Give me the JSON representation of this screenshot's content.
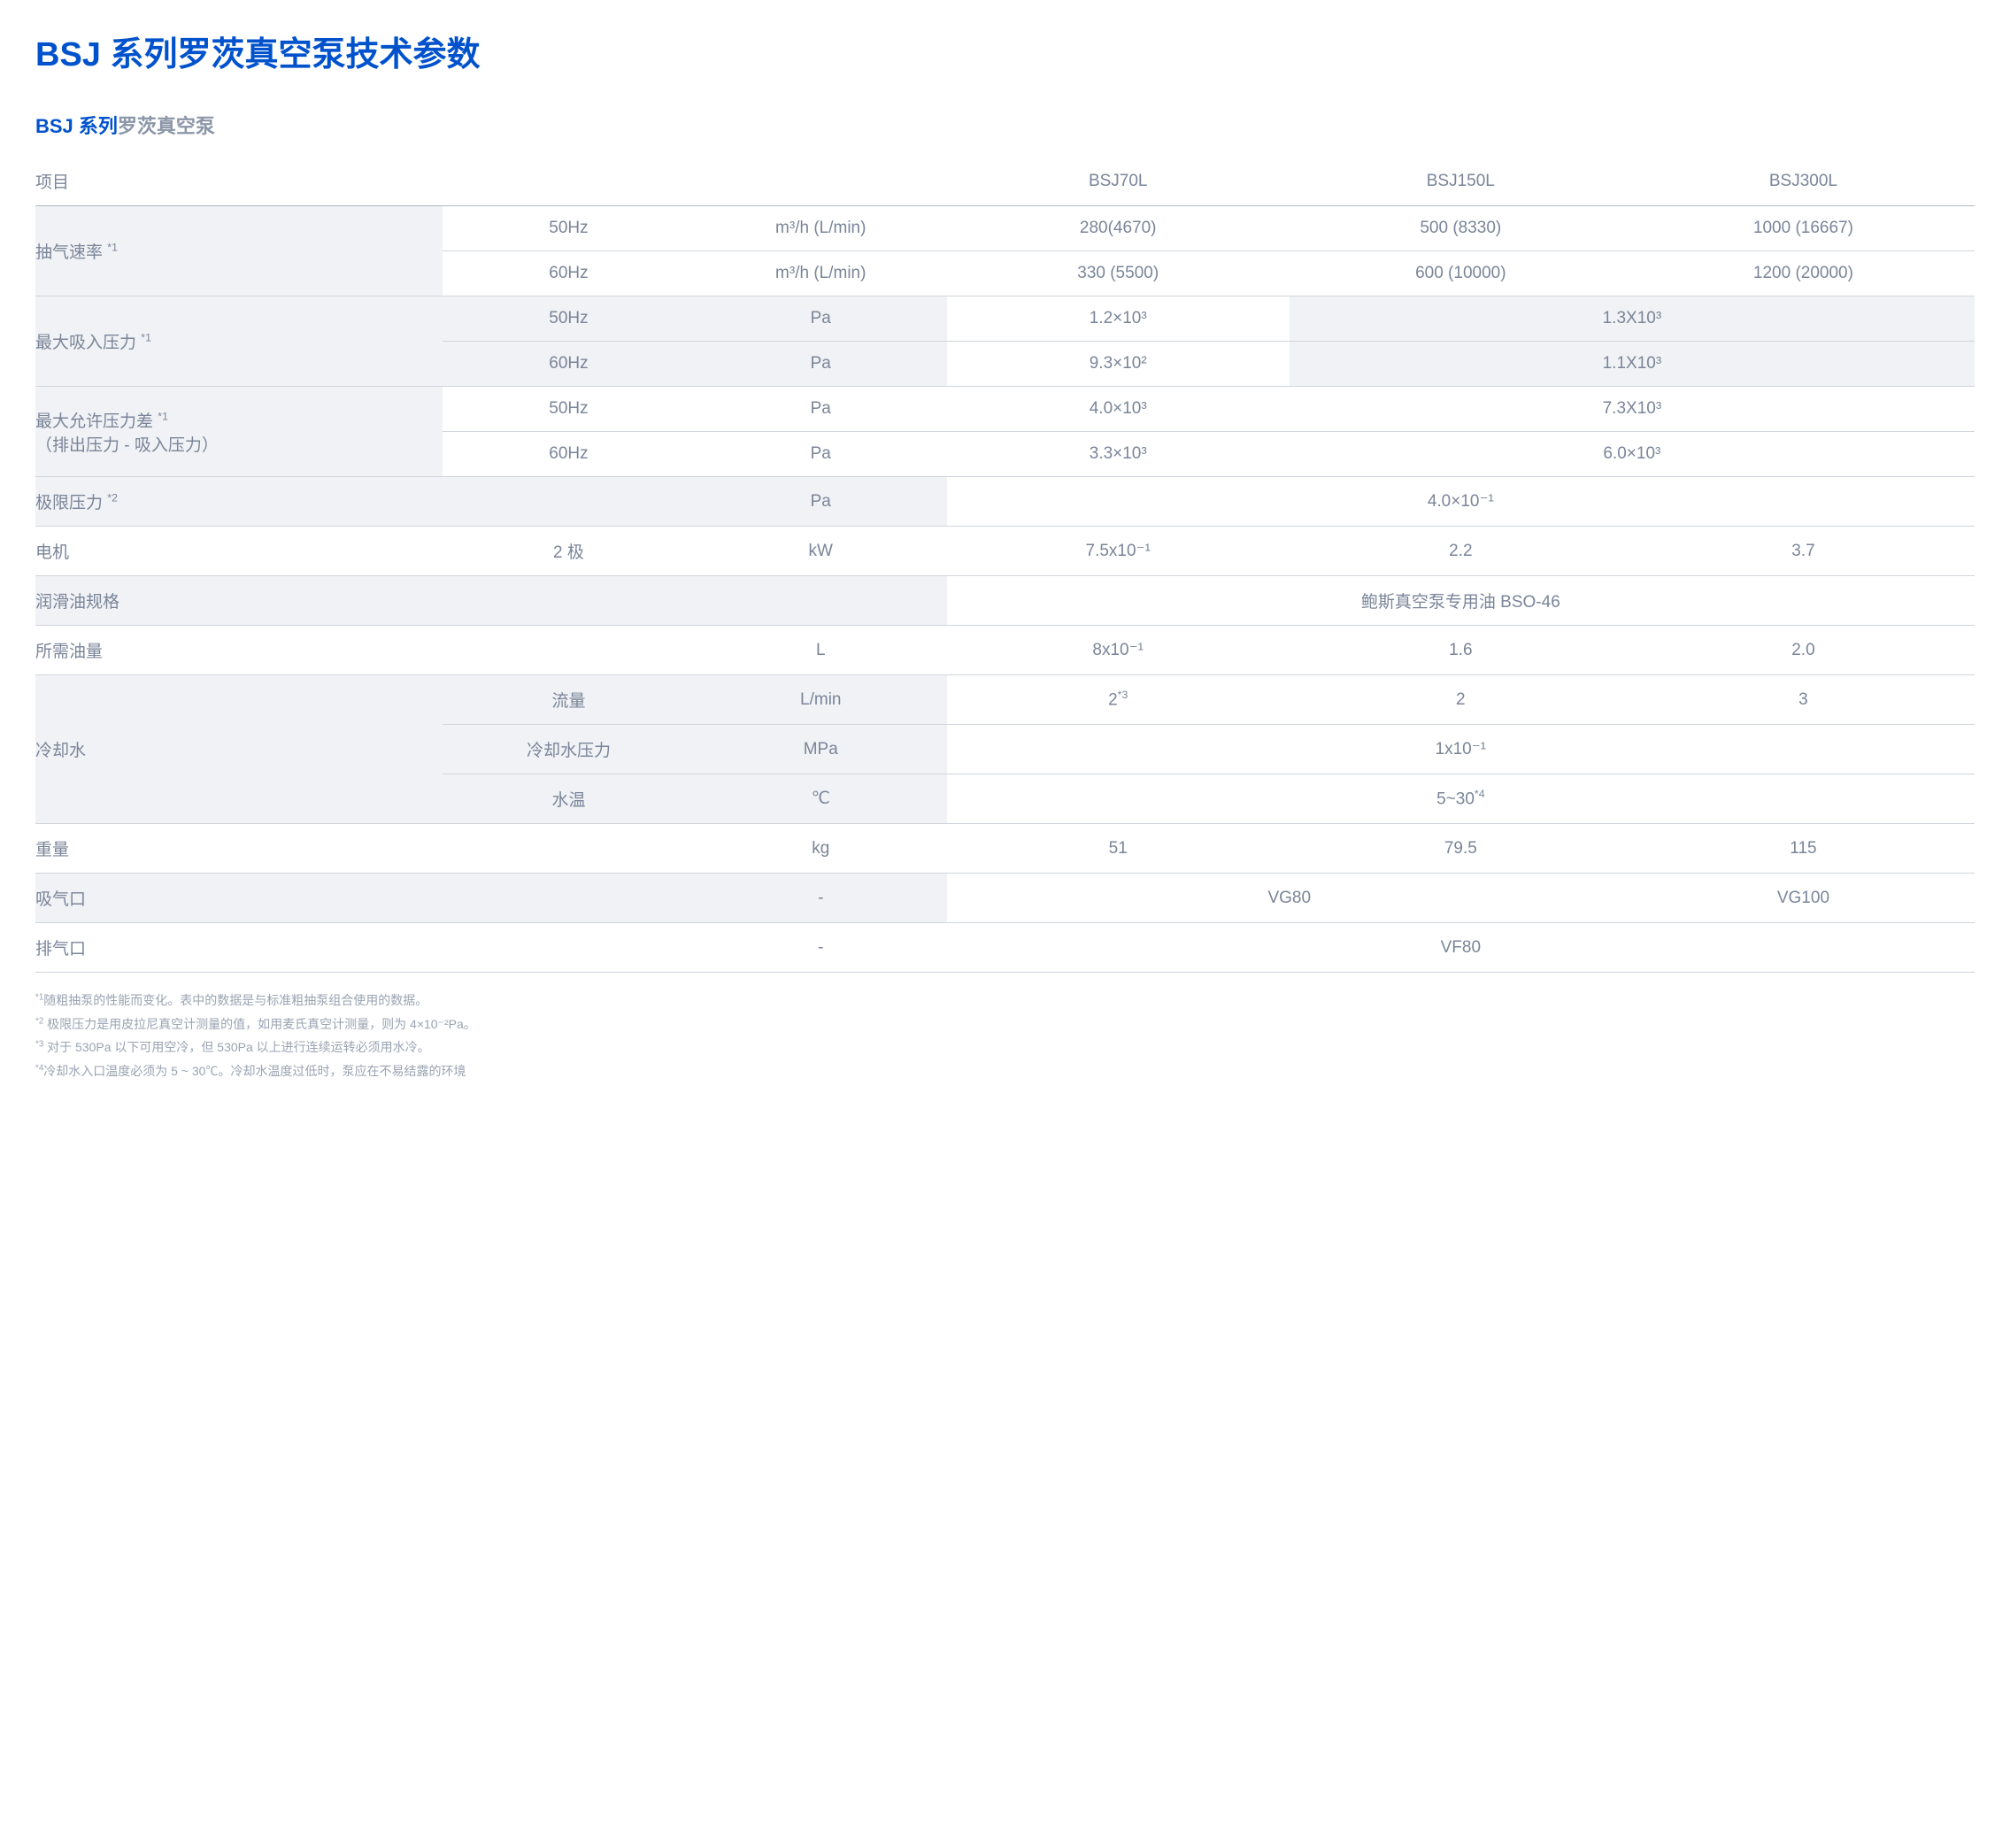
{
  "title": "BSJ 系列罗茨真空泵技术参数",
  "subtitle": {
    "blue": "BSJ 系列",
    "gray": "罗茨真空泵"
  },
  "header": {
    "item": "项目",
    "models": [
      "BSJ70L",
      "BSJ150L",
      "BSJ300L"
    ]
  },
  "rows": {
    "pumping_speed": {
      "label": "抽气速率",
      "ref": "*1",
      "freq1": "50Hz",
      "freq2": "60Hz",
      "unit": "m³/h (L/min)",
      "row1": [
        "280(4670)",
        "500 (8330)",
        "1000 (16667)"
      ],
      "row2": [
        "330 (5500)",
        "600 (10000)",
        "1200 (20000)"
      ]
    },
    "max_inlet": {
      "label": "最大吸入压力",
      "ref": "*1",
      "freq1": "50Hz",
      "freq2": "60Hz",
      "unit": "Pa",
      "v1_1": "1.2×10³",
      "v1_23": "1.3X10³",
      "v2_1": "9.3×10²",
      "v2_23": "1.1X10³"
    },
    "max_diff": {
      "label1": "最大允许压力差",
      "ref": "*1",
      "label2": "（排出压力 - 吸入压力）",
      "freq1": "50Hz",
      "freq2": "60Hz",
      "unit": "Pa",
      "v1_1": "4.0×10³",
      "v1_23": "7.3X10³",
      "v2_1": "3.3×10³",
      "v2_23": "6.0×10³"
    },
    "ultimate": {
      "label": "极限压力",
      "ref": "*2",
      "unit": "Pa",
      "value": "4.0×10⁻¹"
    },
    "motor": {
      "label": "电机",
      "spec": "2 极",
      "unit": "kW",
      "values": [
        "7.5x10⁻¹",
        "2.2",
        "3.7"
      ]
    },
    "oil_spec": {
      "label": "润滑油规格",
      "value": "鲍斯真空泵专用油 BSO-46"
    },
    "oil_amount": {
      "label": "所需油量",
      "unit": "L",
      "values": [
        "8x10⁻¹",
        "1.6",
        "2.0"
      ]
    },
    "cooling": {
      "label": "冷却水",
      "flow": {
        "label": "流量",
        "unit": "L/min",
        "v1": "2",
        "v1_ref": "*3",
        "v2": "2",
        "v3": "3"
      },
      "pressure": {
        "label": "冷却水压力",
        "unit": "MPa",
        "value": "1x10⁻¹"
      },
      "temp": {
        "label": "水温",
        "unit": "℃",
        "value": "5~30",
        "ref": "*4"
      }
    },
    "weight": {
      "label": "重量",
      "unit": "kg",
      "values": [
        "51",
        "79.5",
        "115"
      ]
    },
    "inlet": {
      "label": "吸气口",
      "unit": "-",
      "v12": "VG80",
      "v3": "VG100"
    },
    "outlet": {
      "label": "排气口",
      "unit": "-",
      "value": "VF80"
    }
  },
  "footnotes": {
    "f1": "随粗抽泵的性能而变化。表中的数据是与标准粗抽泵组合使用的数据。",
    "f2": "极限压力是用皮拉尼真空计测量的值，如用麦氏真空计测量，则为 4×10⁻²Pa。",
    "f3": "对于 530Pa 以下可用空冷，但 530Pa 以上进行连续运转必须用水冷。",
    "f4": "冷却水入口温度必须为 5 ~ 30℃。冷却水温度过低时，泵应在不易结露的环境"
  },
  "colors": {
    "primary_blue": "#0052cc",
    "text_gray": "#7a8599",
    "subtitle_gray": "#8b96a8",
    "footnote_gray": "#9aa3b2",
    "border": "#d0d5dd",
    "shaded_bg": "#f0f2f5"
  }
}
